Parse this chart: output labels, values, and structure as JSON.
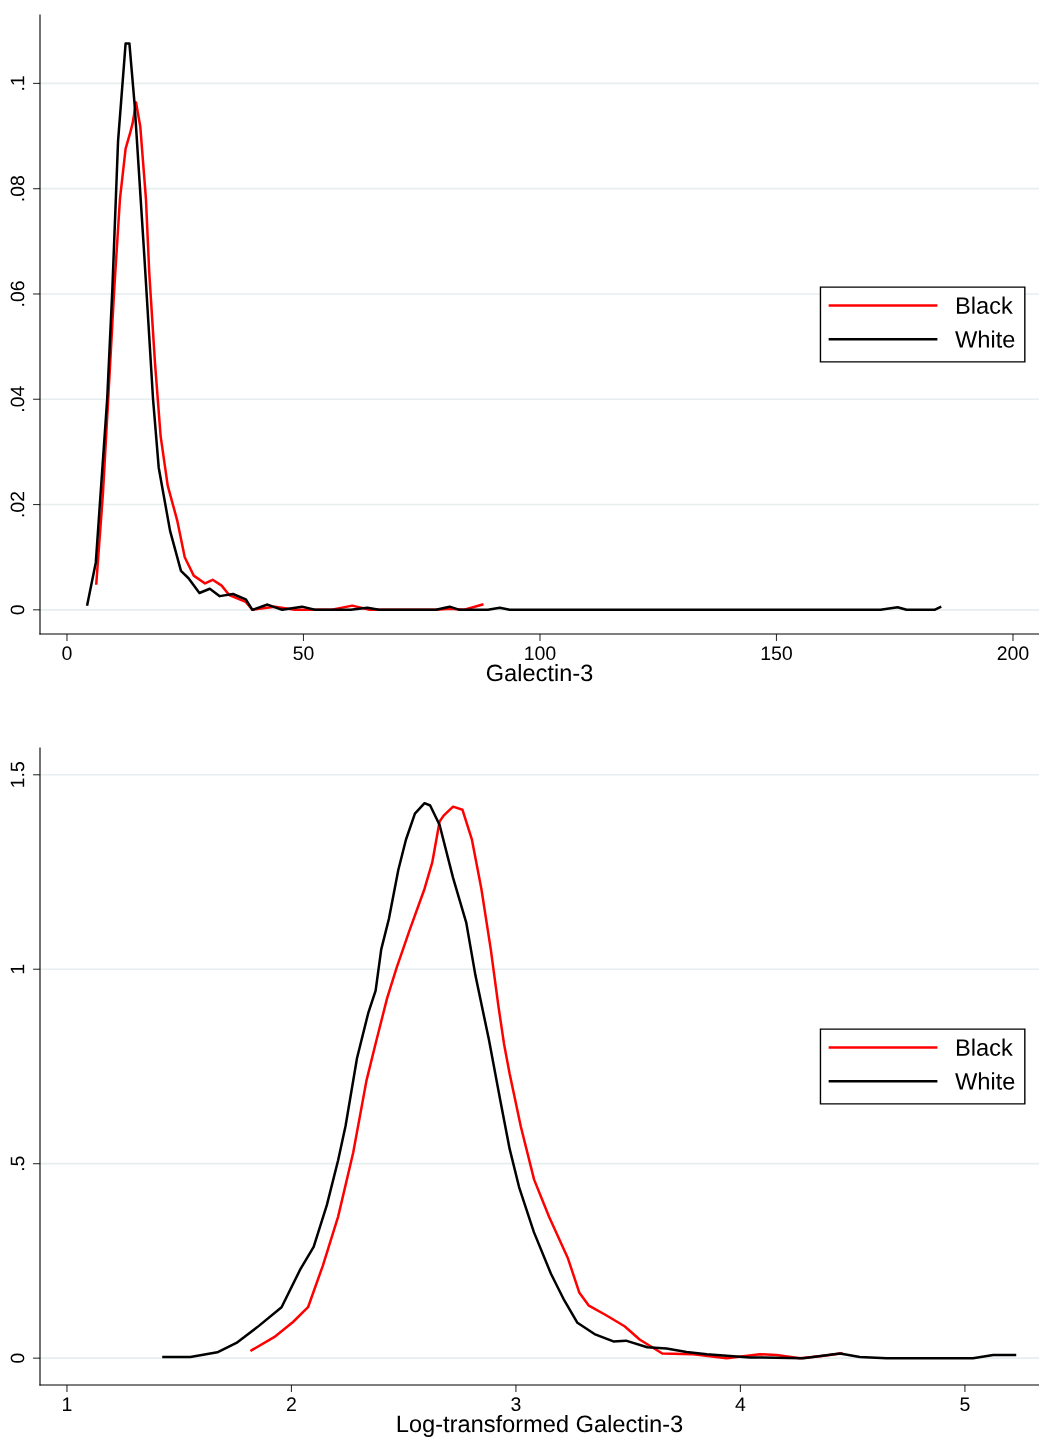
{
  "chart_data": [
    {
      "type": "line",
      "xlabel": "Galectin-3",
      "xlim": [
        -5.7,
        205.5
      ],
      "ylim": [
        -0.0046,
        0.113
      ],
      "xticks": [
        0,
        50,
        100,
        150,
        200
      ],
      "yticks": [
        {
          "value": 0,
          "label": "0"
        },
        {
          "value": 0.02,
          "label": ".02"
        },
        {
          "value": 0.04,
          "label": ".04"
        },
        {
          "value": 0.06,
          "label": ".06"
        },
        {
          "value": 0.08,
          "label": ".08"
        },
        {
          "value": 0.1,
          "label": ".1"
        }
      ],
      "grid": "y",
      "legend": "right",
      "marker": "none",
      "line_style": "solid",
      "series": [
        {
          "name": "Black",
          "color": "#ff0000",
          "x": [
            6.2,
            7.6,
            8.9,
            10.0,
            11.2,
            12.4,
            13.3,
            13.9,
            14.6,
            15.5,
            16.7,
            17.4,
            18.6,
            19.8,
            21.3,
            23.3,
            24.9,
            26.8,
            29.2,
            30.8,
            32.7,
            34.3,
            37.8,
            39.2,
            43.9,
            48.2,
            56.0,
            60.3,
            64.0,
            78.0,
            80.9,
            84.0,
            87.8
          ],
          "values": [
            0.005,
            0.022,
            0.043,
            0.061,
            0.078,
            0.0876,
            0.0904,
            0.0925,
            0.0964,
            0.0918,
            0.078,
            0.064,
            0.047,
            0.033,
            0.0236,
            0.017,
            0.01,
            0.0065,
            0.005,
            0.0057,
            0.0046,
            0.0028,
            0.0015,
            0.0,
            0.0006,
            0.0,
            0.0,
            0.0008,
            0.0,
            0.0,
            0.0002,
            0.0,
            0.001
          ]
        },
        {
          "name": "White",
          "color": "#000000",
          "x": [
            4.3,
            6.1,
            8.5,
            9.6,
            10.8,
            12.4,
            13.2,
            14.3,
            16.3,
            18.2,
            19.4,
            21.8,
            24.1,
            25.7,
            28.0,
            30.2,
            32.3,
            35.1,
            37.8,
            39.2,
            42.4,
            45.5,
            49.7,
            52.4,
            60.0,
            63.5,
            66.0,
            78.0,
            80.9,
            83.0,
            89.0,
            91.5,
            93.6,
            172.0,
            175.6,
            177.5,
            183.4,
            184.6
          ],
          "values": [
            0.001,
            0.009,
            0.04,
            0.061,
            0.089,
            0.1076,
            0.1076,
            0.096,
            0.068,
            0.04,
            0.027,
            0.015,
            0.0074,
            0.006,
            0.0032,
            0.004,
            0.0026,
            0.003,
            0.002,
            0.0,
            0.001,
            0.0,
            0.0006,
            0.0,
            0.0,
            0.0004,
            0.0,
            0.0,
            0.0006,
            0.0,
            0.0,
            0.0004,
            0.0,
            0.0,
            0.0005,
            0.0,
            0.0,
            0.0005
          ]
        }
      ]
    },
    {
      "type": "line",
      "xlabel": "Log-transformed Galectin-3",
      "xlim": [
        0.88,
        5.33
      ],
      "ylim": [
        -0.069,
        1.569
      ],
      "xticks": [
        1,
        2,
        3,
        4,
        5
      ],
      "yticks": [
        {
          "value": 0,
          "label": "0"
        },
        {
          "value": 0.5,
          "label": ".5"
        },
        {
          "value": 1,
          "label": "1"
        },
        {
          "value": 1.5,
          "label": "1.5"
        }
      ],
      "grid": "y",
      "legend": "right",
      "marker": "none",
      "line_style": "solid",
      "series": [
        {
          "name": "Black",
          "color": "#ff0000",
          "x": [
            1.822,
            1.923,
            2.007,
            2.074,
            2.14,
            2.208,
            2.275,
            2.334,
            2.375,
            2.426,
            2.468,
            2.526,
            2.593,
            2.627,
            2.66,
            2.678,
            2.72,
            2.762,
            2.804,
            2.846,
            2.888,
            2.922,
            2.947,
            2.972,
            3.022,
            3.081,
            3.148,
            3.232,
            3.282,
            3.325,
            3.4,
            3.484,
            3.551,
            3.652,
            3.79,
            3.938,
            4.087,
            4.161,
            4.265,
            4.354,
            4.45
          ],
          "values": [
            0.02,
            0.054,
            0.093,
            0.131,
            0.238,
            0.364,
            0.528,
            0.713,
            0.809,
            0.925,
            1.003,
            1.1,
            1.207,
            1.274,
            1.38,
            1.395,
            1.418,
            1.41,
            1.333,
            1.207,
            1.051,
            0.905,
            0.808,
            0.731,
            0.595,
            0.459,
            0.363,
            0.256,
            0.169,
            0.135,
            0.111,
            0.082,
            0.048,
            0.012,
            0.01,
            0.0,
            0.01,
            0.008,
            0.0,
            0.005,
            0.012
          ]
        },
        {
          "name": "White",
          "color": "#000000",
          "x": [
            1.43,
            1.55,
            1.67,
            1.755,
            1.855,
            1.956,
            2.04,
            2.099,
            2.158,
            2.208,
            2.241,
            2.292,
            2.342,
            2.375,
            2.4,
            2.434,
            2.476,
            2.51,
            2.55,
            2.593,
            2.618,
            2.66,
            2.72,
            2.779,
            2.82,
            2.88,
            2.93,
            2.972,
            3.014,
            3.08,
            3.156,
            3.215,
            3.274,
            3.35,
            3.434,
            3.49,
            3.585,
            3.671,
            3.76,
            3.85,
            4.042,
            4.28,
            4.443,
            4.532,
            4.651,
            5.036,
            5.126,
            5.223
          ],
          "values": [
            0.003,
            0.003,
            0.015,
            0.039,
            0.083,
            0.131,
            0.229,
            0.286,
            0.394,
            0.509,
            0.597,
            0.771,
            0.887,
            0.945,
            1.051,
            1.129,
            1.255,
            1.333,
            1.4,
            1.427,
            1.421,
            1.371,
            1.235,
            1.119,
            0.983,
            0.818,
            0.664,
            0.538,
            0.44,
            0.324,
            0.217,
            0.149,
            0.091,
            0.062,
            0.043,
            0.045,
            0.028,
            0.025,
            0.016,
            0.01,
            0.002,
            0.0,
            0.012,
            0.003,
            0.0,
            0.0,
            0.008,
            0.008
          ]
        }
      ]
    }
  ]
}
